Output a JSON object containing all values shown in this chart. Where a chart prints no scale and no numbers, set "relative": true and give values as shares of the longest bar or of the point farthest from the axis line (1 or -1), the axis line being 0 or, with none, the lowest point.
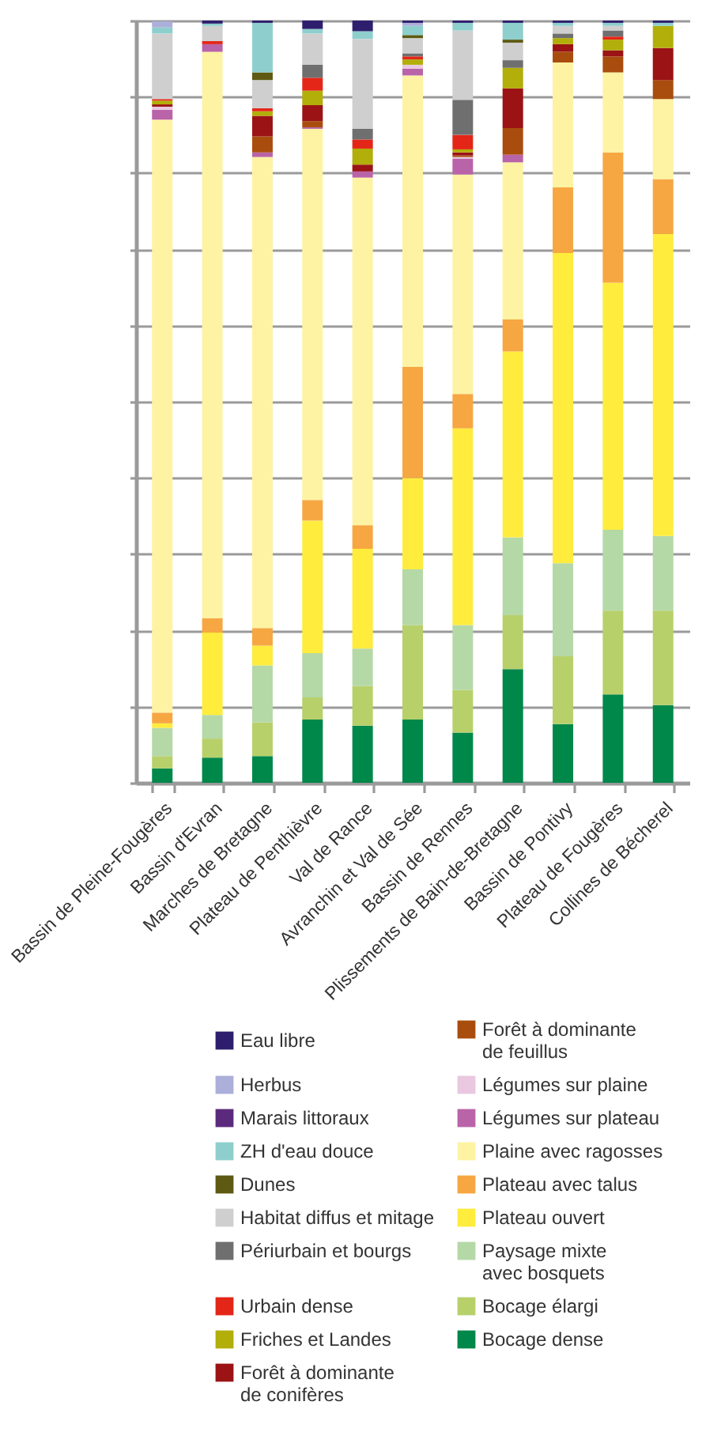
{
  "chart_data": {
    "type": "bar",
    "stacked": true,
    "relative": true,
    "grid": true,
    "legend": "bottom",
    "categories": [
      "Bassin de Pleine-Fougères",
      "Bassin d'Evran",
      "Marches de Bretagne",
      "Plateau de Penthièvre",
      "Val de Rance",
      "Avranchin et Val de Sée",
      "Bassin de Rennes",
      "Plissements de Bain-de-Bretagne",
      "Bassin de Pontivy",
      "Plateau de Fougères",
      "Collines de Bécherel"
    ],
    "series": [
      {
        "name": "Bocage dense",
        "color": "#00874a",
        "values": [
          0.019,
          0.033,
          0.035,
          0.083,
          0.075,
          0.083,
          0.066,
          0.149,
          0.077,
          0.116,
          0.102
        ]
      },
      {
        "name": "Bocage élargi",
        "color": "#b7d06a",
        "values": [
          0.016,
          0.025,
          0.044,
          0.029,
          0.052,
          0.124,
          0.056,
          0.071,
          0.089,
          0.11,
          0.124
        ]
      },
      {
        "name": "Paysage mixte avec bosquets",
        "color": "#b5d8a7",
        "values": [
          0.037,
          0.031,
          0.075,
          0.058,
          0.049,
          0.073,
          0.085,
          0.102,
          0.122,
          0.106,
          0.098
        ]
      },
      {
        "name": "Plateau ouvert",
        "color": "#ffec3d",
        "values": [
          0.006,
          0.108,
          0.026,
          0.174,
          0.131,
          0.12,
          0.258,
          0.244,
          0.407,
          0.324,
          0.396
        ]
      },
      {
        "name": "Plateau avec talus",
        "color": "#f6a742",
        "values": [
          0.014,
          0.019,
          0.023,
          0.027,
          0.031,
          0.146,
          0.045,
          0.042,
          0.086,
          0.171,
          0.072
        ]
      },
      {
        "name": "Plaine avec ragosses",
        "color": "#fdf3a3",
        "values": [
          0.778,
          0.743,
          0.618,
          0.487,
          0.456,
          0.382,
          0.288,
          0.206,
          0.164,
          0.105,
          0.105
        ]
      },
      {
        "name": "Légumes sur plateau",
        "color": "#b964a9",
        "values": [
          0.013,
          0.01,
          0.006,
          0.002,
          0.008,
          0.009,
          0.021,
          0.01,
          null,
          null,
          null
        ]
      },
      {
        "name": "Légumes sur plaine",
        "color": "#e9c8e0",
        "values": [
          0.004,
          null,
          null,
          null,
          null,
          0.005,
          0.002,
          null,
          null,
          null,
          null
        ]
      },
      {
        "name": "Forêt à dominante de feuillus",
        "color": "#a94d0e",
        "values": [
          null,
          null,
          0.021,
          0.008,
          null,
          null,
          0.002,
          0.035,
          0.014,
          0.021,
          0.025
        ]
      },
      {
        "name": "Forêt à dominante de conifères",
        "color": "#9b1314",
        "values": [
          0.003,
          null,
          0.027,
          0.021,
          0.009,
          null,
          0.004,
          0.052,
          0.01,
          0.008,
          0.042
        ]
      },
      {
        "name": "Friches et Landes",
        "color": "#b2ae0a",
        "values": [
          0.005,
          null,
          0.006,
          0.019,
          0.021,
          0.007,
          0.004,
          0.027,
          0.008,
          0.014,
          0.029
        ]
      },
      {
        "name": "Urbain dense",
        "color": "#e42618",
        "values": [
          0.002,
          0.004,
          0.004,
          0.017,
          0.012,
          0.004,
          0.019,
          null,
          null,
          0.004,
          null
        ]
      },
      {
        "name": "Périurbain et bourgs",
        "color": "#6f6f6f",
        "values": [
          null,
          null,
          null,
          0.017,
          0.014,
          0.004,
          0.046,
          0.01,
          0.006,
          0.008,
          null
        ]
      },
      {
        "name": "Habitat diffus et mitage",
        "color": "#cfcfcf",
        "values": [
          0.086,
          0.02,
          0.037,
          0.041,
          0.118,
          0.02,
          0.091,
          0.023,
          0.01,
          0.006,
          null
        ]
      },
      {
        "name": "Dunes",
        "color": "#5e5a13",
        "values": [
          null,
          null,
          0.01,
          null,
          null,
          0.004,
          null,
          0.004,
          null,
          null,
          null
        ]
      },
      {
        "name": "ZH d'eau douce",
        "color": "#8ecfcd",
        "values": [
          0.008,
          0.003,
          0.065,
          0.006,
          0.01,
          0.012,
          0.01,
          0.022,
          0.004,
          0.004,
          0.004
        ]
      },
      {
        "name": "Marais littoraux",
        "color": "#5c2a7d",
        "values": [
          null,
          null,
          null,
          null,
          null,
          null,
          null,
          null,
          null,
          null,
          null
        ]
      },
      {
        "name": "Herbus",
        "color": "#abafd9",
        "values": [
          0.008,
          null,
          null,
          null,
          null,
          0.004,
          null,
          null,
          null,
          null,
          null
        ]
      },
      {
        "name": "Eau libre",
        "color": "#2e1f6e",
        "values": [
          null,
          0.004,
          0.003,
          0.011,
          0.014,
          0.003,
          0.003,
          0.003,
          0.003,
          0.003,
          0.003
        ]
      }
    ]
  }
}
